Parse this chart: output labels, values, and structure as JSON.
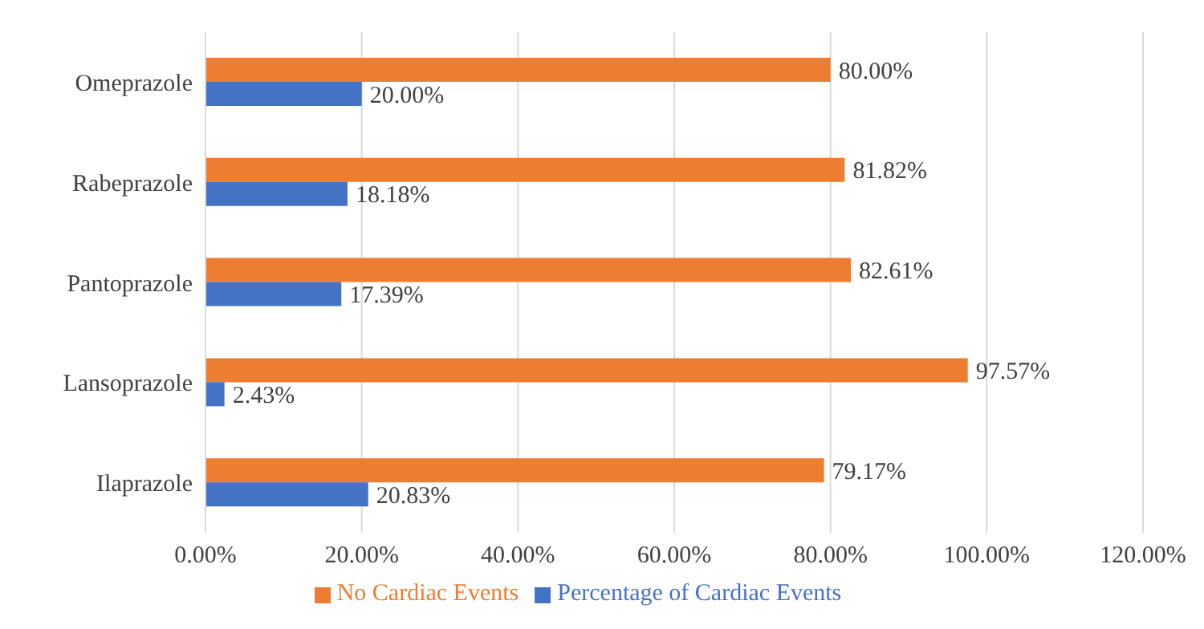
{
  "chart_data": {
    "type": "bar",
    "orientation": "horizontal",
    "categories": [
      "Omeprazole",
      "Rabeprazole",
      "Pantoprazole",
      "Lansoprazole",
      "Ilaprazole"
    ],
    "series": [
      {
        "name": "No Cardiac Events",
        "color": "#ed7d31",
        "values": [
          80.0,
          81.82,
          82.61,
          97.57,
          79.17
        ],
        "value_labels": [
          "80.00%",
          "81.82%",
          "82.61%",
          "97.57%",
          "79.17%"
        ]
      },
      {
        "name": "Percentage of Cardiac Events",
        "color": "#4472c4",
        "values": [
          20.0,
          18.18,
          17.39,
          2.43,
          20.83
        ],
        "value_labels": [
          "20.00%",
          "18.18%",
          "17.39%",
          "2.43%",
          "20.83%"
        ]
      }
    ],
    "xlim": [
      0,
      120
    ],
    "xticks": [
      {
        "value": 0,
        "label": "0.00%"
      },
      {
        "value": 20,
        "label": "20.00%"
      },
      {
        "value": 40,
        "label": "40.00%"
      },
      {
        "value": 60,
        "label": "60.00%"
      },
      {
        "value": 80,
        "label": "80.00%"
      },
      {
        "value": 100,
        "label": "100.00%"
      },
      {
        "value": 120,
        "label": "120.00%"
      }
    ],
    "grid": "x",
    "legend": "bottom"
  }
}
